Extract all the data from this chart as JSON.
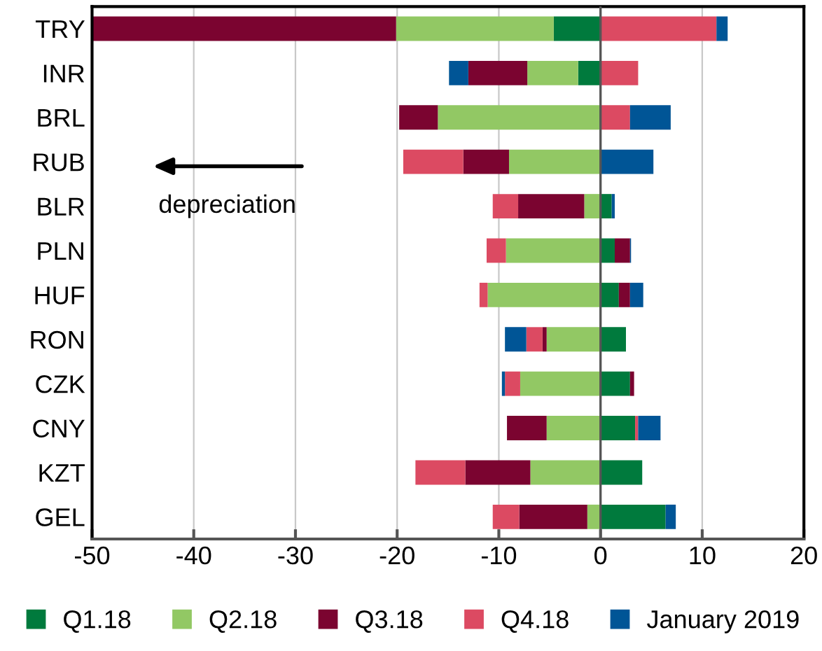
{
  "chart_data": {
    "type": "bar",
    "orientation": "horizontal",
    "stacked": true,
    "categories": [
      "TRY",
      "INR",
      "BRL",
      "RUB",
      "BLR",
      "PLN",
      "HUF",
      "RON",
      "CZK",
      "CNY",
      "KZT",
      "GEL"
    ],
    "series": [
      {
        "name": "Q1.18",
        "color": "#007a3d",
        "values": [
          -4.6,
          -2.2,
          0,
          0,
          1.1,
          1.4,
          1.8,
          2.5,
          2.9,
          3.4,
          4.1,
          6.4
        ]
      },
      {
        "name": "Q2.18",
        "color": "#92c864",
        "values": [
          -15.5,
          -5.0,
          -16.0,
          -9.0,
          -1.6,
          -9.3,
          -11.1,
          -5.3,
          -7.9,
          -5.3,
          -6.9,
          -1.3
        ]
      },
      {
        "name": "Q3.18",
        "color": "#7b0430",
        "values": [
          -29.9,
          -5.8,
          -3.8,
          -4.5,
          -6.5,
          1.5,
          1.1,
          -0.4,
          0.4,
          -3.9,
          -6.4,
          -6.7
        ]
      },
      {
        "name": "Q4.18",
        "color": "#dc4a62",
        "values": [
          11.4,
          3.7,
          2.9,
          -5.9,
          -2.5,
          -1.9,
          -0.8,
          -1.6,
          -1.5,
          0.3,
          -4.9,
          -2.6
        ]
      },
      {
        "name": "January 2019",
        "color": "#005596",
        "values": [
          1.1,
          -1.9,
          4.0,
          5.2,
          0.3,
          0.1,
          1.3,
          -2.1,
          -0.3,
          2.2,
          0,
          1.0
        ]
      }
    ],
    "xlim": [
      -50,
      20
    ],
    "xticks": [
      -50,
      -40,
      -30,
      -20,
      -10,
      0,
      10,
      20
    ],
    "grid": "x",
    "legend": "bottom",
    "marker": "square",
    "annotations": [
      "depreciation"
    ]
  }
}
